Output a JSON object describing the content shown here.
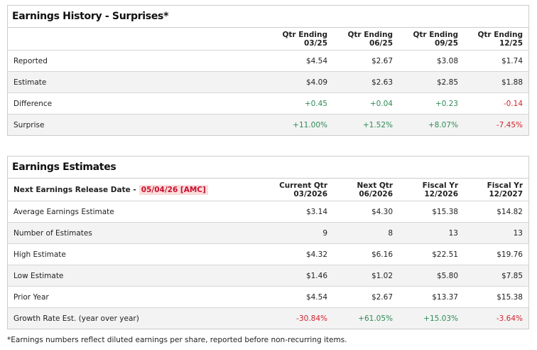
{
  "history": {
    "title": "Earnings History - Surprises*",
    "headers": [
      [
        "Qtr Ending",
        "03/25"
      ],
      [
        "Qtr Ending",
        "06/25"
      ],
      [
        "Qtr Ending",
        "09/25"
      ],
      [
        "Qtr Ending",
        "12/25"
      ]
    ],
    "rows": [
      {
        "label": "Reported",
        "values": [
          "$4.54",
          "$2.67",
          "$3.08",
          "$1.74"
        ]
      },
      {
        "label": "Estimate",
        "values": [
          "$4.09",
          "$2.63",
          "$2.85",
          "$1.88"
        ]
      },
      {
        "label": "Difference",
        "values": [
          "+0.45",
          "+0.04",
          "+0.23",
          "-0.14"
        ]
      },
      {
        "label": "Surprise",
        "values": [
          "+11.00%",
          "+1.52%",
          "+8.07%",
          "-7.45%"
        ]
      }
    ]
  },
  "estimates": {
    "title": "Earnings Estimates",
    "release_label": "Next Earnings Release Date -",
    "release_date": "05/04/26 [AMC]",
    "headers": [
      [
        "Current Qtr",
        "03/2026"
      ],
      [
        "Next Qtr",
        "06/2026"
      ],
      [
        "Fiscal Yr",
        "12/2026"
      ],
      [
        "Fiscal Yr",
        "12/2027"
      ]
    ],
    "rows": [
      {
        "label": "Average Earnings Estimate",
        "values": [
          "$3.14",
          "$4.30",
          "$15.38",
          "$14.82"
        ]
      },
      {
        "label": "Number of Estimates",
        "values": [
          "9",
          "8",
          "13",
          "13"
        ]
      },
      {
        "label": "High Estimate",
        "values": [
          "$4.32",
          "$6.16",
          "$22.51",
          "$19.76"
        ]
      },
      {
        "label": "Low Estimate",
        "values": [
          "$1.46",
          "$1.02",
          "$5.80",
          "$7.85"
        ]
      },
      {
        "label": "Prior Year",
        "values": [
          "$4.54",
          "$2.67",
          "$13.37",
          "$15.38"
        ]
      },
      {
        "label": "Growth Rate Est. (year over year)",
        "values": [
          "-30.84%",
          "+61.05%",
          "+15.03%",
          "-3.64%"
        ]
      }
    ]
  },
  "footnote": "*Earnings numbers reflect diluted earnings per share, reported before non-recurring items.",
  "colors": {
    "positive": "#2e8b57",
    "negative": "#d2242f",
    "badge_bg": "#fbdcdc"
  }
}
